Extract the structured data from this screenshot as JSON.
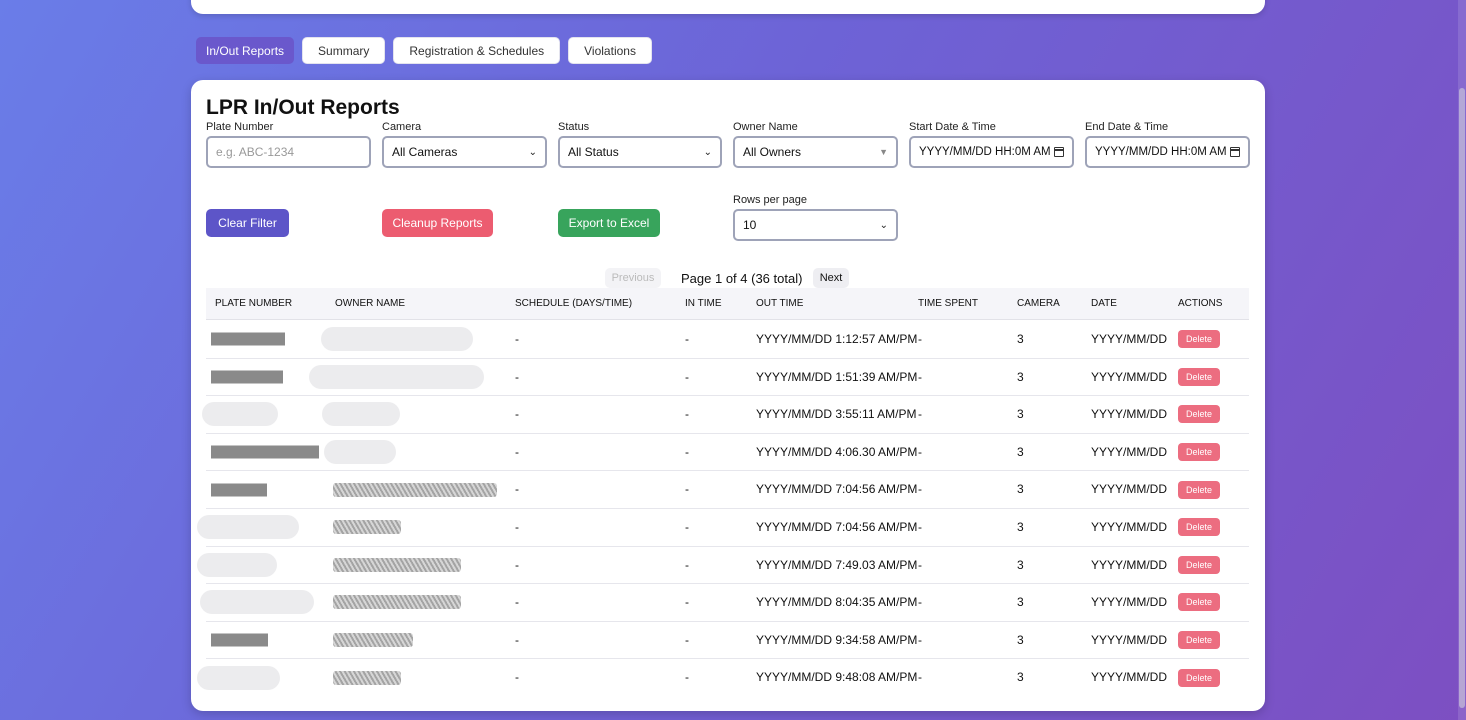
{
  "tabs": [
    {
      "label": "In/Out Reports",
      "active": true
    },
    {
      "label": "Summary",
      "active": false
    },
    {
      "label": "Registration & Schedules",
      "active": false
    },
    {
      "label": "Violations",
      "active": false
    }
  ],
  "title": "LPR In/Out Reports",
  "filters": {
    "plate": {
      "label": "Plate Number",
      "placeholder": "e.g. ABC-1234"
    },
    "camera": {
      "label": "Camera",
      "value": "All Cameras"
    },
    "status": {
      "label": "Status",
      "value": "All Status"
    },
    "owner": {
      "label": "Owner Name",
      "value": "All Owners"
    },
    "start": {
      "label": "Start Date & Time",
      "value": "YYYY/MM/DD HH:0M AM"
    },
    "end": {
      "label": "End Date & Time",
      "value": "YYYY/MM/DD HH:0M AM"
    },
    "rows": {
      "label": "Rows per page",
      "value": "10"
    }
  },
  "actions": {
    "clear": "Clear Filter",
    "cleanup": "Cleanup Reports",
    "export": "Export to Excel"
  },
  "pagination": {
    "prev": "Previous",
    "info": "Page 1 of 4 (36 total)",
    "next": "Next"
  },
  "columns": [
    "PLATE NUMBER",
    "OWNER NAME",
    "SCHEDULE (DAYS/TIME)",
    "IN TIME",
    "OUT TIME",
    "TIME SPENT",
    "CAMERA",
    "DATE",
    "ACTIONS"
  ],
  "rows": [
    {
      "schedule": "-",
      "in_time": "-",
      "out_time": "YYYY/MM/DD 1:12:57 AM/PM",
      "time_spent": "-",
      "camera": "3",
      "date": "YYYY/MM/DD",
      "action": "Delete"
    },
    {
      "schedule": "-",
      "in_time": "-",
      "out_time": "YYYY/MM/DD 1:51:39 AM/PM",
      "time_spent": "-",
      "camera": "3",
      "date": "YYYY/MM/DD",
      "action": "Delete"
    },
    {
      "schedule": "-",
      "in_time": "-",
      "out_time": "YYYY/MM/DD 3:55:11 AM/PM",
      "time_spent": "-",
      "camera": "3",
      "date": "YYYY/MM/DD",
      "action": "Delete"
    },
    {
      "schedule": "-",
      "in_time": "-",
      "out_time": "YYYY/MM/DD 4:06.30 AM/PM",
      "time_spent": "-",
      "camera": "3",
      "date": "YYYY/MM/DD",
      "action": "Delete"
    },
    {
      "schedule": "-",
      "in_time": "-",
      "out_time": "YYYY/MM/DD 7:04:56 AM/PM",
      "time_spent": "-",
      "camera": "3",
      "date": "YYYY/MM/DD",
      "action": "Delete"
    },
    {
      "schedule": "-",
      "in_time": "-",
      "out_time": "YYYY/MM/DD 7:04:56 AM/PM",
      "time_spent": "-",
      "camera": "3",
      "date": "YYYY/MM/DD",
      "action": "Delete"
    },
    {
      "schedule": "-",
      "in_time": "-",
      "out_time": "YYYY/MM/DD 7:49.03 AM/PM",
      "time_spent": "-",
      "camera": "3",
      "date": "YYYY/MM/DD",
      "action": "Delete"
    },
    {
      "schedule": "-",
      "in_time": "-",
      "out_time": "YYYY/MM/DD 8:04:35 AM/PM",
      "time_spent": "-",
      "camera": "3",
      "date": "YYYY/MM/DD",
      "action": "Delete"
    },
    {
      "schedule": "-",
      "in_time": "-",
      "out_time": "YYYY/MM/DD 9:34:58 AM/PM",
      "time_spent": "-",
      "camera": "3",
      "date": "YYYY/MM/DD",
      "action": "Delete"
    },
    {
      "schedule": "-",
      "in_time": "-",
      "out_time": "YYYY/MM/DD 9:48:08 AM/PM",
      "time_spent": "-",
      "camera": "3",
      "date": "YYYY/MM/DD",
      "action": "Delete"
    }
  ]
}
